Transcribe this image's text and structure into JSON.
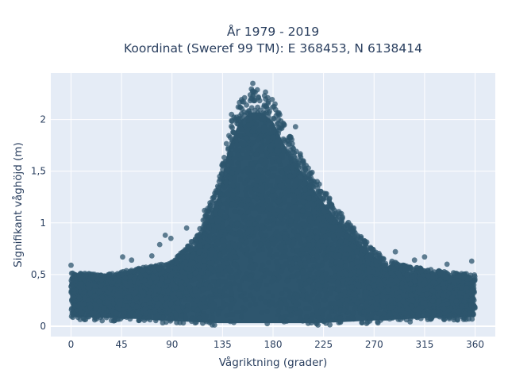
{
  "chart_data": {
    "type": "scatter",
    "title_lines": [
      "År 1979 - 2019",
      "Koordinat (Sweref 99 TM): E 368453, N 6138414"
    ],
    "xlabel": "Vågriktning (grader)",
    "ylabel": "Signifikant våghöjd (m)",
    "xlim": [
      -18,
      378
    ],
    "ylim": [
      -0.1,
      2.45
    ],
    "x_ticks": [
      0,
      45,
      90,
      135,
      180,
      225,
      270,
      315,
      360
    ],
    "x_tick_labels": [
      "0",
      "45",
      "90",
      "135",
      "180",
      "225",
      "270",
      "315",
      "360"
    ],
    "y_ticks": [
      0,
      0.5,
      1,
      1.5,
      2
    ],
    "y_tick_labels": [
      "0",
      "0,5",
      "1",
      "1,5",
      "2"
    ],
    "grid": true,
    "legend": "none",
    "colors": {
      "marker": "#2e566e",
      "plot_background": "#e5ecf6",
      "grid": "#ffffff"
    },
    "envelope": {
      "direction_deg": [
        0,
        30,
        60,
        90,
        110,
        130,
        140,
        150,
        160,
        170,
        180,
        190,
        200,
        220,
        240,
        260,
        280,
        300,
        320,
        340,
        360
      ],
      "upper_hs_m": [
        0.52,
        0.5,
        0.56,
        0.62,
        0.85,
        1.35,
        1.9,
        2.2,
        2.3,
        2.3,
        2.2,
        1.95,
        1.75,
        1.4,
        1.1,
        0.85,
        0.65,
        0.58,
        0.55,
        0.52,
        0.5
      ],
      "lower_hs_m": [
        0.06,
        0.05,
        0.04,
        0.02,
        0.01,
        0.0,
        0.0,
        0.0,
        0.0,
        0.0,
        0.0,
        0.0,
        0.0,
        0.0,
        0.01,
        0.02,
        0.03,
        0.04,
        0.05,
        0.05,
        0.06
      ]
    },
    "outliers": [
      {
        "x": 0,
        "y": 0.59
      },
      {
        "x": 46,
        "y": 0.67
      },
      {
        "x": 54,
        "y": 0.64
      },
      {
        "x": 72,
        "y": 0.68
      },
      {
        "x": 79,
        "y": 0.79
      },
      {
        "x": 84,
        "y": 0.88
      },
      {
        "x": 89,
        "y": 0.85
      },
      {
        "x": 103,
        "y": 0.95
      },
      {
        "x": 119,
        "y": 1.12
      },
      {
        "x": 143,
        "y": 2.05
      },
      {
        "x": 162,
        "y": 2.35
      },
      {
        "x": 200,
        "y": 1.93
      },
      {
        "x": 252,
        "y": 0.95
      },
      {
        "x": 289,
        "y": 0.72
      },
      {
        "x": 306,
        "y": 0.64
      },
      {
        "x": 315,
        "y": 0.67
      },
      {
        "x": 335,
        "y": 0.6
      },
      {
        "x": 357,
        "y": 0.63
      }
    ]
  }
}
